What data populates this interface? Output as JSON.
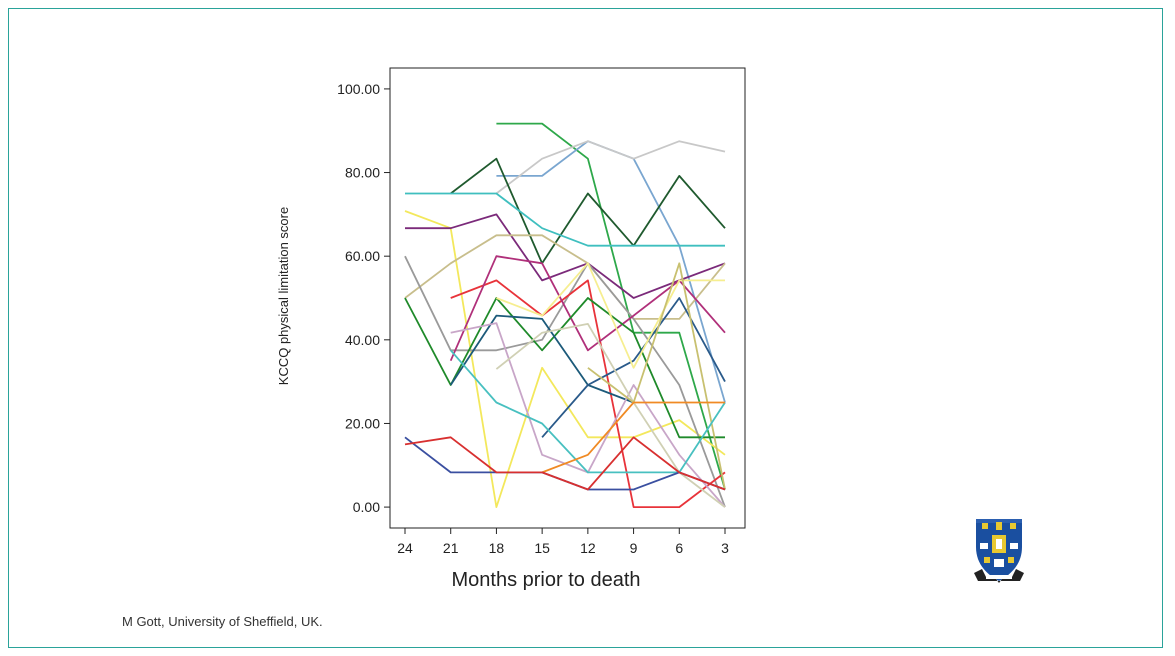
{
  "credit": "M Gott, University of Sheffield, UK.",
  "logo": {
    "icon": "university-crest",
    "colors": [
      "#1a4fa0",
      "#e8c830",
      "#ffffff",
      "#222222"
    ]
  },
  "frame_color": "#2aa39a",
  "chart_data": {
    "type": "line",
    "title": "",
    "xlabel": "Months prior to death",
    "ylabel": "KCCQ physical limitation score",
    "x": [
      24,
      21,
      18,
      15,
      12,
      9,
      6,
      3
    ],
    "x_tick_labels": [
      "24",
      "21",
      "18",
      "15",
      "12",
      "9",
      "6",
      "3"
    ],
    "y_ticks": [
      0,
      20,
      40,
      60,
      80,
      100
    ],
    "y_tick_labels": [
      "0.00",
      "20.00",
      "40.00",
      "60.00",
      "80.00",
      "100.00"
    ],
    "ylim": [
      -5,
      105
    ],
    "grid": false,
    "legend": "none",
    "series": [
      {
        "color": "#2ea84a",
        "values": [
          null,
          null,
          91.7,
          91.7,
          83.3,
          41.7,
          41.7,
          4.2
        ]
      },
      {
        "color": "#7aa6d0",
        "values": [
          null,
          null,
          79.2,
          79.2,
          87.5,
          83.3,
          62.5,
          25.0
        ]
      },
      {
        "color": "#c8c8c8",
        "values": [
          null,
          null,
          75.0,
          83.3,
          87.5,
          83.3,
          87.5,
          85.0
        ]
      },
      {
        "color": "#1f5a2e",
        "values": [
          null,
          75.0,
          83.3,
          58.3,
          75.0,
          62.5,
          79.2,
          66.7
        ]
      },
      {
        "color": "#3fbfbf",
        "values": [
          75.0,
          75.0,
          75.0,
          66.7,
          62.5,
          62.5,
          62.5,
          62.5
        ]
      },
      {
        "color": "#f3e85c",
        "values": [
          70.8,
          66.7,
          0.0,
          33.3,
          16.7,
          16.7,
          20.8,
          12.5
        ]
      },
      {
        "color": "#7b2a7a",
        "values": [
          66.7,
          66.7,
          70.0,
          54.2,
          58.3,
          50.0,
          54.2,
          58.3
        ]
      },
      {
        "color": "#c8be8c",
        "values": [
          50.0,
          58.3,
          65.0,
          65.0,
          58.3,
          45.0,
          45.0,
          58.3
        ]
      },
      {
        "color": "#9a9a9a",
        "values": [
          60.0,
          37.5,
          37.5,
          40.0,
          58.3,
          45.0,
          29.2,
          0.0
        ]
      },
      {
        "color": "#e8333a",
        "values": [
          null,
          50.0,
          54.2,
          45.8,
          54.2,
          0.0,
          0.0,
          8.3
        ]
      },
      {
        "color": "#b0307a",
        "values": [
          null,
          35.0,
          60.0,
          58.3,
          37.5,
          45.8,
          54.2,
          41.7
        ]
      },
      {
        "color": "#1f8a2a",
        "values": [
          50.0,
          29.2,
          50.0,
          37.5,
          50.0,
          41.7,
          16.7,
          16.7
        ]
      },
      {
        "color": "#1c5a7a",
        "values": [
          null,
          29.2,
          45.8,
          45.0,
          29.2,
          25.0,
          null,
          null
        ]
      },
      {
        "color": "#2a5a8a",
        "values": [
          null,
          null,
          null,
          16.7,
          29.2,
          35.0,
          50.0,
          30.0
        ]
      },
      {
        "color": "#f6ee90",
        "values": [
          null,
          null,
          50.0,
          45.8,
          58.3,
          33.3,
          54.2,
          54.2
        ]
      },
      {
        "color": "#c8a6c8",
        "values": [
          null,
          41.7,
          44.0,
          12.5,
          8.3,
          29.2,
          12.5,
          0.0
        ]
      },
      {
        "color": "#d0d0b4",
        "values": [
          null,
          null,
          33.0,
          41.7,
          43.8,
          25.0,
          8.3,
          0.0
        ]
      },
      {
        "color": "#c8c070",
        "values": [
          null,
          null,
          null,
          null,
          33.3,
          25.0,
          58.3,
          4.2
        ]
      },
      {
        "color": "#48c0c0",
        "values": [
          null,
          37.5,
          25.0,
          20.0,
          8.3,
          8.3,
          8.3,
          25.0
        ]
      },
      {
        "color": "#f08a24",
        "values": [
          null,
          null,
          null,
          8.3,
          12.5,
          25.0,
          25.0,
          25.0
        ]
      },
      {
        "color": "#3a4fa0",
        "values": [
          16.7,
          8.3,
          8.3,
          8.3,
          4.2,
          4.2,
          8.3,
          4.2
        ]
      },
      {
        "color": "#d83030",
        "values": [
          15.0,
          16.7,
          8.3,
          8.3,
          4.2,
          16.7,
          8.3,
          4.2
        ]
      }
    ]
  }
}
